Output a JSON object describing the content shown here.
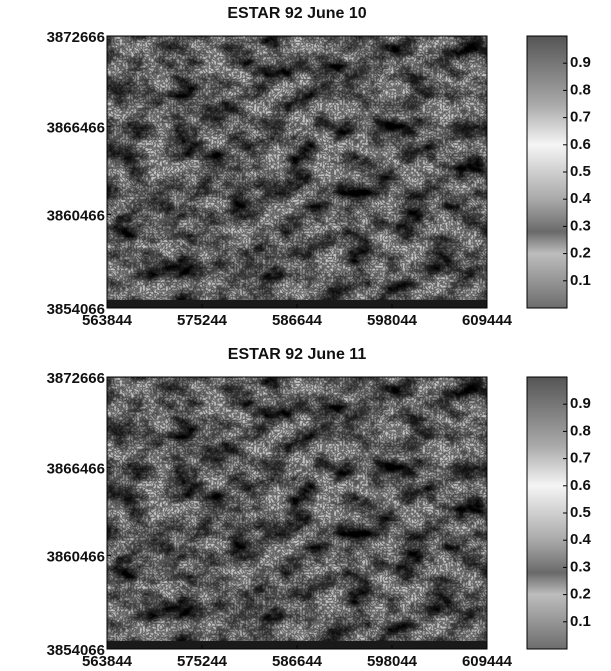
{
  "chart_data": [
    {
      "type": "heatmap",
      "title": "ESTAR 92 June 10",
      "xlim": [
        563844,
        609444
      ],
      "xticks": [
        563844,
        575244,
        586644,
        598044,
        609444
      ],
      "ylim": [
        3854066,
        3872666
      ],
      "yticks": [
        3854066,
        3860466,
        3866466,
        3872666
      ],
      "clim": [
        0,
        1
      ],
      "cticks": [
        0.1,
        0.2,
        0.3,
        0.4,
        0.5,
        0.6,
        0.7,
        0.8,
        0.9
      ]
    },
    {
      "type": "heatmap",
      "title": "ESTAR 92 June 11",
      "xlim": [
        563844,
        609444
      ],
      "xticks": [
        563844,
        575244,
        586644,
        598044,
        609444
      ],
      "ylim": [
        3854066,
        3872666
      ],
      "yticks": [
        3854066,
        3860466,
        3866466,
        3872666
      ],
      "clim": [
        0,
        1
      ],
      "cticks": [
        0.1,
        0.2,
        0.3,
        0.4,
        0.5,
        0.6,
        0.7,
        0.8,
        0.9
      ]
    }
  ]
}
